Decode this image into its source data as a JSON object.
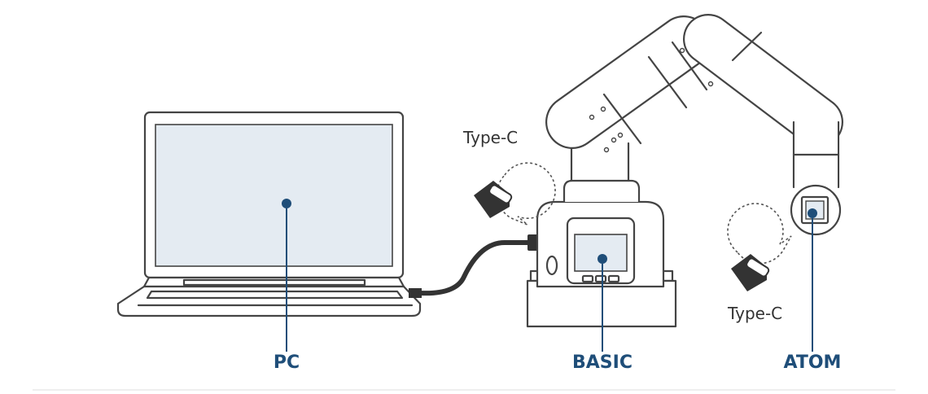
{
  "labels": {
    "pc": "PC",
    "basic": "BASIC",
    "atom": "ATOM",
    "type_c_top": "Type-C",
    "type_c_bottom": "Type-C"
  },
  "colors": {
    "label_blue": "#1f4e79",
    "screen_fill": "#e4ebf2",
    "outline": "#444444",
    "marker": "#1f4e79",
    "connector": "#333333"
  },
  "icons": [
    "laptop-icon",
    "robot-arm-icon",
    "usb-type-c-connector-icon"
  ]
}
